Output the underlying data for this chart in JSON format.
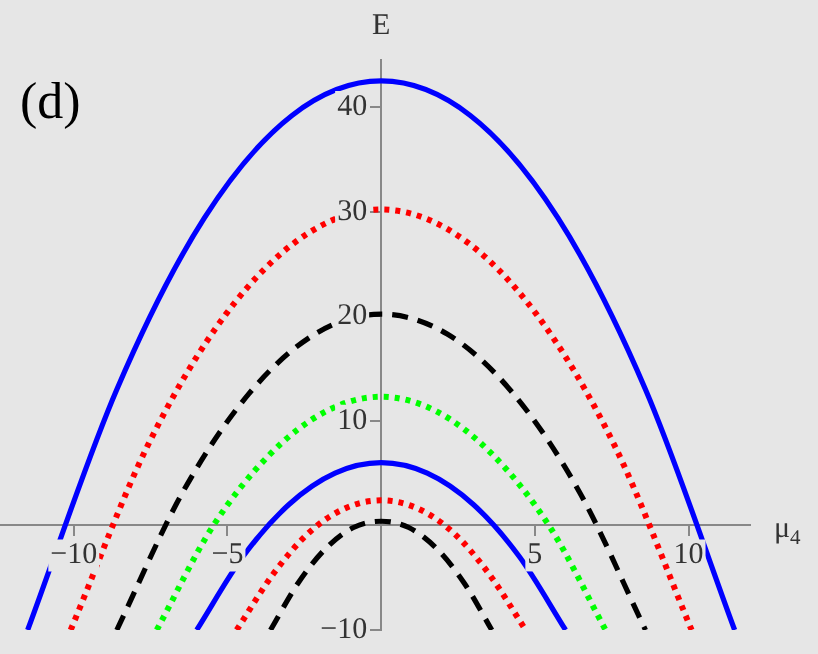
{
  "chart_data": {
    "type": "line",
    "xlabel": "μ$_{4}$",
    "ylabel": "E",
    "annotations": [
      "(d)"
    ],
    "xlim": [
      -12.4,
      12
    ],
    "ylim": [
      -10,
      44.5
    ],
    "xticks": [
      -10,
      -5,
      5,
      10
    ],
    "yticks": [
      -10,
      10,
      20,
      30,
      40
    ],
    "grid": false,
    "legend": false,
    "marker": "none",
    "series": [
      {
        "color": "#0000ff",
        "line_style": "solid",
        "x": [
          -11.5,
          -8.6,
          -5.75,
          -2.9,
          0,
          2.9,
          5.75,
          8.6,
          11.5
        ],
        "values": [
          -10,
          13.0,
          29.4,
          39.2,
          42.5,
          39.2,
          29.4,
          13.0,
          -10
        ]
      },
      {
        "color": "#ff0000",
        "line_style": "dotted",
        "x": [
          -10.1,
          -7.6,
          -5.05,
          -2.5,
          0,
          2.5,
          5.05,
          7.6,
          10.1
        ],
        "values": [
          -10,
          7.6,
          20.2,
          27.7,
          30.2,
          27.7,
          20.2,
          7.6,
          -10
        ]
      },
      {
        "color": "#000000",
        "line_style": "dashed",
        "x": [
          -8.6,
          -6.45,
          -4.3,
          -2.15,
          0,
          2.15,
          4.3,
          6.45,
          8.6
        ],
        "values": [
          -10,
          3.2,
          12.6,
          18.3,
          20.2,
          18.3,
          12.6,
          3.2,
          -10
        ]
      },
      {
        "color": "#00ff00",
        "line_style": "dotted",
        "x": [
          -7.3,
          -5.5,
          -3.65,
          -1.8,
          0,
          1.8,
          3.65,
          5.5,
          7.3
        ],
        "values": [
          -10,
          -0.2,
          6.7,
          10.9,
          12.3,
          10.9,
          6.7,
          -0.2,
          -10
        ]
      },
      {
        "color": "#0000ff",
        "line_style": "solid",
        "x": [
          -6,
          -4.5,
          -3,
          -1.5,
          0,
          1.5,
          3,
          4.5,
          6
        ],
        "values": [
          -10,
          -3,
          2,
          5,
          6,
          5,
          2,
          -3,
          -10
        ]
      },
      {
        "color": "#ff0000",
        "line_style": "dotted",
        "x": [
          -4.7,
          -3.5,
          -2.35,
          -1.2,
          0,
          1.2,
          2.35,
          3.5,
          4.7
        ],
        "values": [
          -10,
          -4.6,
          -0.7,
          1.6,
          2.4,
          1.6,
          -0.7,
          -4.6,
          -10
        ]
      },
      {
        "color": "#000000",
        "line_style": "dashed",
        "x": [
          -3.6,
          -2.7,
          -1.8,
          -0.9,
          0,
          0.9,
          1.8,
          2.7,
          3.6
        ],
        "values": [
          -10,
          -5.5,
          -2.2,
          -0.2,
          0.4,
          -0.2,
          -2.2,
          -5.5,
          -10
        ]
      }
    ]
  }
}
